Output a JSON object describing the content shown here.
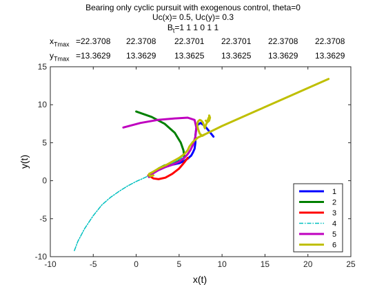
{
  "chart_data": {
    "type": "line",
    "title": "Bearing only cyclic pursuit with exogenous control, theta=0",
    "subtitle_lines": [
      "Uc(x)= 0.5, Uc(y)= 0.3",
      "B",
      "t",
      "=1  1  1  0  1  1"
    ],
    "x_label_row": {
      "label_main": "x",
      "label_sub": "Tmax",
      "values": [
        "=22.3708",
        "22.3708",
        "22.3701",
        "22.3701",
        "22.3708",
        "22.3708"
      ]
    },
    "y_label_row": {
      "label_main": "y",
      "label_sub": "Tmax",
      "values": [
        "=13.3629",
        "13.3629",
        "13.3625",
        "13.3625",
        "13.3629",
        "13.3629"
      ]
    },
    "xlabel": "x(t)",
    "ylabel": "y(t)",
    "xlim": [
      -10,
      25
    ],
    "ylim": [
      -10,
      15
    ],
    "xticks": [
      "-10",
      "-5",
      "0",
      "5",
      "10",
      "15",
      "20",
      "25"
    ],
    "yticks": [
      "-10",
      "-5",
      "0",
      "5",
      "10",
      "15"
    ],
    "legend_position": "bottom-right",
    "series": [
      {
        "name": "1",
        "color": "#0000ff",
        "dash": "solid",
        "x": [
          9.0,
          8.5,
          8.0,
          7.5,
          7.2,
          7.0,
          6.9,
          6.9,
          6.8,
          6.6,
          6.4,
          6.2,
          6.0,
          5.6,
          5.0,
          4.2,
          3.4,
          2.6,
          2.0,
          1.5
        ],
        "y": [
          5.8,
          6.5,
          7.2,
          7.6,
          7.4,
          6.9,
          6.0,
          5.0,
          4.2,
          3.7,
          3.3,
          3.1,
          2.9,
          2.6,
          2.3,
          2.1,
          1.8,
          1.4,
          1.0,
          0.5
        ]
      },
      {
        "name": "2",
        "color": "#008000",
        "dash": "solid",
        "x": [
          0.0,
          1.8,
          3.3,
          4.5,
          5.2,
          5.5,
          5.6,
          5.5,
          5.3,
          5.0,
          4.6,
          4.0,
          3.3,
          2.6,
          2.0,
          1.5
        ],
        "y": [
          9.1,
          8.4,
          7.5,
          6.3,
          5.0,
          4.0,
          3.3,
          2.9,
          2.7,
          2.6,
          2.4,
          2.2,
          2.0,
          1.6,
          1.1,
          0.5
        ]
      },
      {
        "name": "3",
        "color": "#ff0000",
        "dash": "solid",
        "x": [
          6.0,
          5.6,
          5.0,
          4.2,
          3.4,
          2.6,
          2.0,
          1.6,
          1.4,
          1.5
        ],
        "y": [
          3.0,
          2.4,
          1.6,
          0.9,
          0.4,
          0.2,
          0.3,
          0.6,
          0.7,
          0.5
        ]
      },
      {
        "name": "4",
        "color": "#00bfbf",
        "dash": "dashdot",
        "x": [
          -7.2,
          -6.8,
          -6.0,
          -5.0,
          -4.0,
          -3.0,
          -2.0,
          -1.0,
          0.0,
          1.0,
          1.5,
          2.0,
          3.0,
          4.0,
          5.0,
          6.0
        ],
        "y": [
          -9.2,
          -8.0,
          -6.3,
          -4.6,
          -3.2,
          -2.2,
          -1.4,
          -0.7,
          -0.1,
          0.4,
          0.7,
          1.0,
          1.6,
          2.2,
          2.8,
          3.4
        ]
      },
      {
        "name": "5",
        "color": "#bf00bf",
        "dash": "solid",
        "x": [
          -1.5,
          0.5,
          2.5,
          4.5,
          6.0,
          6.8,
          7.0,
          6.9,
          6.6,
          6.3,
          6.0,
          5.6,
          5.0,
          4.2,
          3.4,
          2.6,
          2.0,
          1.5
        ],
        "y": [
          7.0,
          7.6,
          8.0,
          8.2,
          8.3,
          8.0,
          7.0,
          5.8,
          4.7,
          4.0,
          3.5,
          3.0,
          2.5,
          2.1,
          1.8,
          1.4,
          1.0,
          0.5
        ]
      },
      {
        "name": "6",
        "color": "#bfbf00",
        "dash": "solid",
        "x": [
          22.4,
          18.0,
          14.0,
          10.0,
          8.0,
          7.2,
          6.6,
          6.2,
          6.0,
          5.6,
          5.0,
          4.2,
          3.4,
          2.6,
          2.0,
          1.5,
          1.5,
          1.6,
          2.0
        ],
        "y": [
          13.4,
          11.2,
          9.2,
          7.2,
          6.1,
          5.7,
          5.1,
          4.5,
          4.0,
          3.5,
          3.0,
          2.5,
          2.0,
          1.6,
          1.2,
          0.9,
          0.7,
          0.6,
          0.7
        ]
      },
      {
        "name": "6",
        "color": "#bfbf00",
        "dash": "solid",
        "x": [
          8.0,
          7.7,
          7.4,
          7.2,
          7.1,
          7.2,
          7.4,
          7.6,
          7.8,
          7.9,
          8.0,
          8.1,
          8.3,
          8.4,
          8.5,
          8.5,
          8.6,
          8.5,
          8.3,
          8.1
        ],
        "y": [
          6.1,
          5.9,
          6.2,
          6.8,
          7.4,
          7.8,
          8.0,
          7.9,
          7.6,
          7.2,
          6.9,
          7.3,
          7.8,
          8.2,
          8.4,
          8.6,
          8.3,
          7.9,
          7.7,
          7.9
        ]
      }
    ]
  }
}
